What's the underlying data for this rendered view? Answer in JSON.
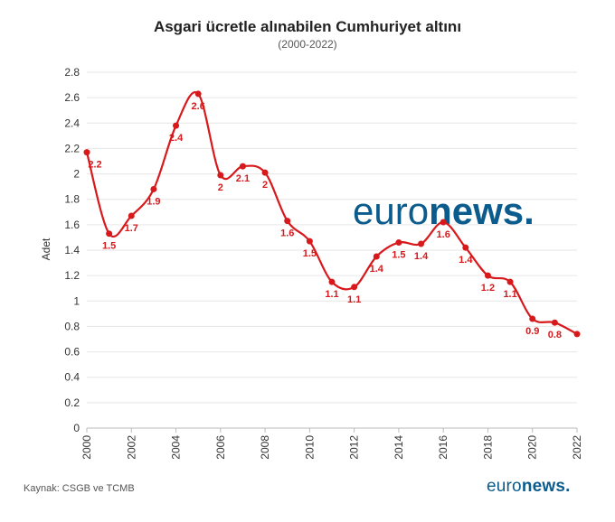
{
  "chart_data": {
    "type": "line",
    "title": "Asgari ücretle alınabilen Cumhuriyet altını",
    "subtitle": "(2000-2022)",
    "ylabel": "Adet",
    "xlabel": "",
    "ylim": [
      0,
      2.8
    ],
    "yticks": [
      "0",
      "0.2",
      "0.4",
      "0.6",
      "0.8",
      "1",
      "1.2",
      "1.4",
      "1.6",
      "1.8",
      "2",
      "2.2",
      "2.4",
      "2.6",
      "2.8"
    ],
    "xticks": [
      "2000",
      "2002",
      "2004",
      "2006",
      "2008",
      "2010",
      "2012",
      "2014",
      "2016",
      "2018",
      "2020",
      "2022"
    ],
    "x": [
      2000,
      2001,
      2002,
      2003,
      2004,
      2005,
      2006,
      2007,
      2008,
      2009,
      2010,
      2011,
      2012,
      2013,
      2014,
      2015,
      2016,
      2017,
      2018,
      2019,
      2020,
      2021,
      2022
    ],
    "values": [
      2.17,
      1.53,
      1.67,
      1.88,
      2.38,
      2.63,
      1.99,
      2.06,
      2.01,
      1.63,
      1.47,
      1.15,
      1.11,
      1.35,
      1.46,
      1.45,
      1.62,
      1.42,
      1.2,
      1.15,
      0.86,
      0.83,
      0.74
    ],
    "labels": [
      "2.2",
      "1.5",
      "1.7",
      "1.9",
      "2.4",
      "2.6",
      "2",
      "2.1",
      "2",
      "1.6",
      "1.5",
      "1.1",
      "1.1",
      "1.4",
      "1.5",
      "1.4",
      "1.6",
      "1.4",
      "1.2",
      "1.1",
      "0.9",
      "0.8",
      ""
    ],
    "line_color": "#d7191c",
    "grid": true
  },
  "watermark": {
    "light": "euro",
    "bold": "news",
    "dot": "."
  },
  "footer": {
    "source": "Kaynak: CSGB ve TCMB",
    "logo_light": "euro",
    "logo_bold": "news",
    "logo_dot": "."
  },
  "colors": {
    "line": "#d7191c",
    "brand": "#0b5c8d",
    "grid": "#e6e6e6"
  }
}
